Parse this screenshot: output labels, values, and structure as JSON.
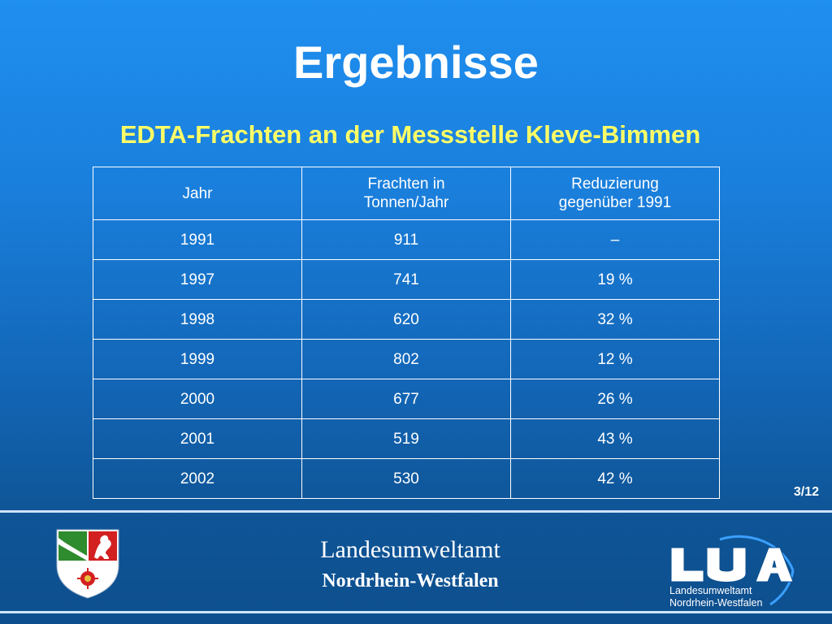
{
  "slide": {
    "title": "Ergebnisse",
    "subtitle": "EDTA-Frachten  an der Messstelle Kleve-Bimmen",
    "page_number": "3/12"
  },
  "table": {
    "headers": [
      [
        "Jahr"
      ],
      [
        "Frachten in",
        "Tonnen/Jahr"
      ],
      [
        "Reduzierung",
        "gegenüber 1991"
      ]
    ],
    "rows": [
      [
        "1991",
        "911",
        "–"
      ],
      [
        "1997",
        "741",
        "19 %"
      ],
      [
        "1998",
        "620",
        "32 %"
      ],
      [
        "1999",
        "802",
        "12 %"
      ],
      [
        "2000",
        "677",
        "26 %"
      ],
      [
        "2001",
        "519",
        "43 %"
      ],
      [
        "2002",
        "530",
        "42 %"
      ]
    ]
  },
  "footer": {
    "agency_name": "Landesumweltamt",
    "agency_region": "Nordrhein-Westfalen",
    "logo_text_line1": "Landesumweltamt",
    "logo_text_line2": "Nordrhein-Westfalen",
    "logo_wordmark": "LUA",
    "crest_icon": "nrw-coat-of-arms-icon"
  },
  "colors": {
    "title": "#ffffff",
    "subtitle": "#ffff66",
    "background_top": "#1f8ff0",
    "background_bottom": "#0d4f8e"
  }
}
